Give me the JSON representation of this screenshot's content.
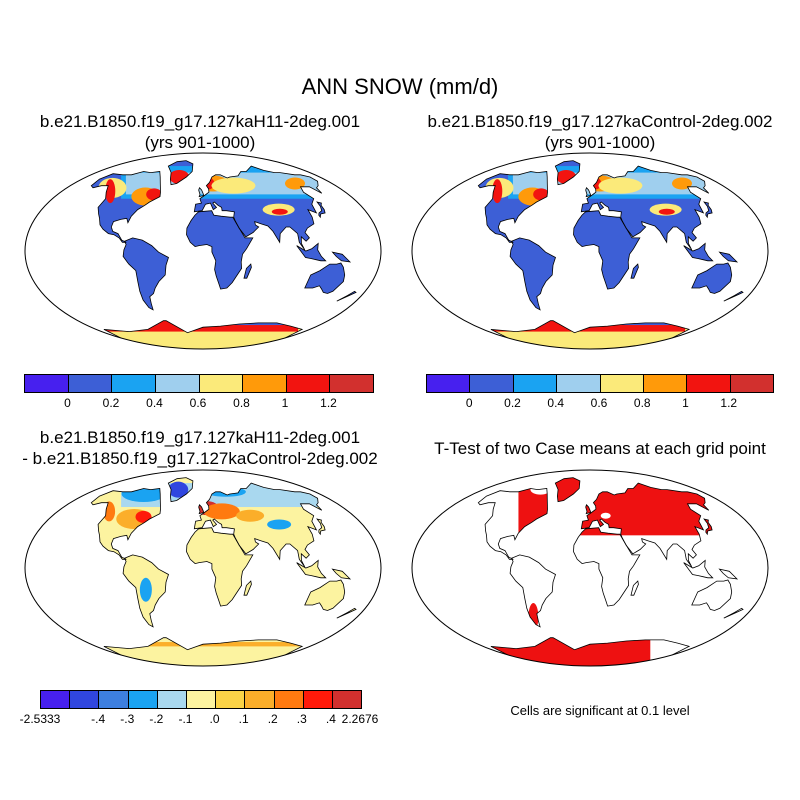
{
  "title": "ANN SNOW (mm/d)",
  "panels": [
    {
      "id": "case1",
      "title_line1": "b.e21.B1850.f19_g17.127kaH11-2deg.001",
      "title_line2": "(yrs 901-1000)"
    },
    {
      "id": "case2",
      "title_line1": "b.e21.B1850.f19_g17.127kaControl-2deg.002",
      "title_line2": "(yrs 901-1000)"
    },
    {
      "id": "diff",
      "title_line1": "b.e21.B1850.f19_g17.127kaH11-2deg.001",
      "title_line2": "- b.e21.B1850.f19_g17.127kaControl-2deg.002"
    },
    {
      "id": "ttest",
      "title_line1": "T-Test of two Case means at each grid point",
      "title_line2": ""
    }
  ],
  "colorbar_case": {
    "colors": [
      "#4720ef",
      "#3d5fd6",
      "#1aa3f2",
      "#9fcfee",
      "#fbea7a",
      "#ff9a0a",
      "#f21410",
      "#d2302e"
    ],
    "labels": [
      "0",
      "0.2",
      "0.4",
      "0.6",
      "0.8",
      "1",
      "1.2"
    ]
  },
  "colorbar_diff": {
    "colors": [
      "#4720ef",
      "#3046df",
      "#3d7fe0",
      "#1aa3f2",
      "#a9d8ef",
      "#fcf3a0",
      "#fbd347",
      "#fbae2a",
      "#ff7a10",
      "#ff1a0a",
      "#d2302e"
    ],
    "labels": [
      "-2.5333",
      "-.4",
      "-.3",
      "-.2",
      "-.1",
      ".0",
      ".1",
      ".2",
      ".3",
      ".4",
      "2.2676"
    ]
  },
  "footnote": "Cells are significant at 0.1 level",
  "colors": {
    "ocean": "#ffffff",
    "land_base": "#3d5fd6",
    "diff_base": "#fcf3a0",
    "significant": "#ee1111"
  }
}
